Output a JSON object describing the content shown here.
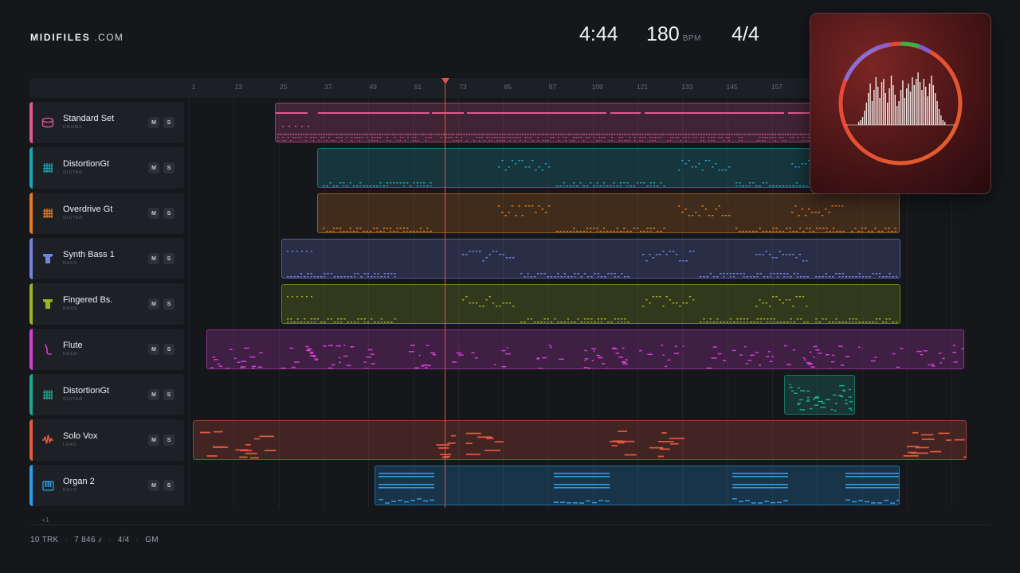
{
  "brand": {
    "name_bold": "MIDIFILES",
    "name_rest": " .COM"
  },
  "transport": {
    "time": "4:44",
    "tempo": "180",
    "tempo_unit": "BPM",
    "signature": "4/4"
  },
  "ruler_ticks": [
    "1",
    "13",
    "25",
    "37",
    "49",
    "61",
    "73",
    "85",
    "97",
    "109",
    "121",
    "133",
    "145",
    "157"
  ],
  "buttons": {
    "mute": "M",
    "solo": "S"
  },
  "tracks": [
    {
      "name": "Standard Set",
      "sub": "DRUMS",
      "color": "#e0588f",
      "icon": "drum-icon"
    },
    {
      "name": "DistortionGt",
      "sub": "GUITAR",
      "color": "#1aa6b8",
      "icon": "guitar-grid-icon"
    },
    {
      "name": "Overdrive Gt",
      "sub": "GUITAR",
      "color": "#e07d22",
      "icon": "guitar-grid-icon"
    },
    {
      "name": "Synth Bass 1",
      "sub": "BASS",
      "color": "#7483e0",
      "icon": "bass-icon"
    },
    {
      "name": "Fingered Bs.",
      "sub": "BASS",
      "color": "#9cb21e",
      "icon": "bass-icon"
    },
    {
      "name": "Flute",
      "sub": "REED",
      "color": "#d43fd1",
      "icon": "flute-icon"
    },
    {
      "name": "DistortionGt",
      "sub": "GUITAR",
      "color": "#1ea88f",
      "icon": "guitar-grid-icon"
    },
    {
      "name": "Solo Vox",
      "sub": "LEAD",
      "color": "#e5593f",
      "icon": "wave-icon"
    },
    {
      "name": "Organ 2",
      "sub": "KEYS",
      "color": "#2a9ee8",
      "icon": "keys-icon"
    }
  ],
  "more_tracks": "+1",
  "footer": {
    "tracks": "10 TRK",
    "notes": "7 846 ♪",
    "signature": "4/4",
    "standard": "GM"
  },
  "playhead": {
    "bar": 67
  }
}
